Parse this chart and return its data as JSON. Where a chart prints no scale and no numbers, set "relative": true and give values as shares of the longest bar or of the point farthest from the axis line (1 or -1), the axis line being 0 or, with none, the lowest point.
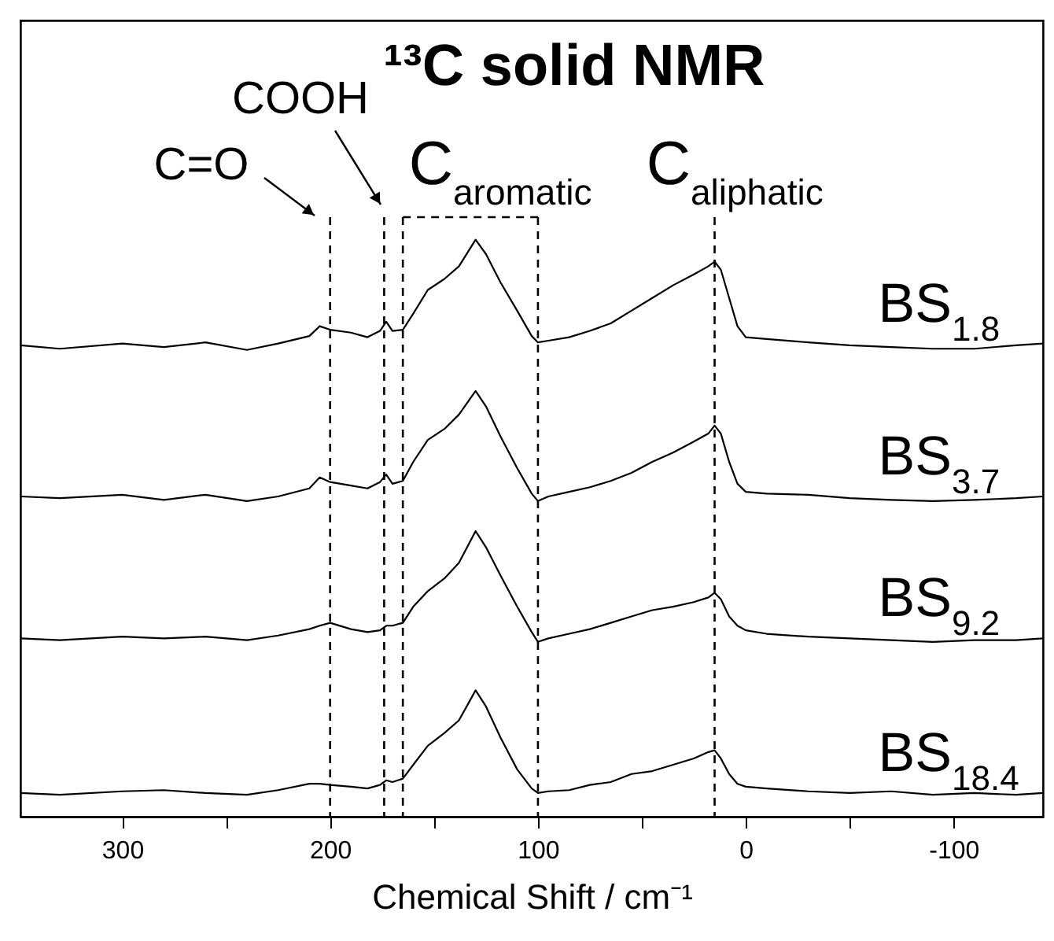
{
  "chart_data": {
    "type": "line",
    "title": "¹³C solid NMR",
    "xlabel": "Chemical Shift / cm⁻¹",
    "relative": true,
    "grid": false,
    "legend": false,
    "marker": "none",
    "line_style": "solid",
    "x": [
      349,
      330,
      300,
      280,
      260,
      240,
      225,
      210,
      205,
      200,
      190,
      182,
      176,
      173,
      170,
      165,
      160,
      153,
      145,
      138,
      130,
      125,
      118,
      110,
      103,
      100,
      95,
      85,
      75,
      65,
      55,
      45,
      35,
      25,
      18,
      15,
      12,
      8,
      4,
      0,
      -10,
      -30,
      -50,
      -70,
      -90,
      -110,
      -130,
      -143
    ],
    "xlim": [
      349,
      -143
    ],
    "xticks": [
      300,
      {
        "value": 250,
        "label": null
      },
      200,
      {
        "value": 150,
        "label": null
      },
      100,
      {
        "value": 50,
        "label": null
      },
      0,
      {
        "value": -50,
        "label": null
      },
      -100
    ],
    "series": [
      {
        "name": "BS$_{1.8}$",
        "color": "#000000",
        "values": [
          0.817,
          0.811,
          0.82,
          0.814,
          0.822,
          0.809,
          0.82,
          0.833,
          0.85,
          0.844,
          0.839,
          0.831,
          0.842,
          0.858,
          0.842,
          0.844,
          0.872,
          0.913,
          0.932,
          0.954,
          1.0,
          0.975,
          0.926,
          0.877,
          0.833,
          0.822,
          0.825,
          0.831,
          0.842,
          0.855,
          0.877,
          0.899,
          0.921,
          0.94,
          0.954,
          0.962,
          0.948,
          0.899,
          0.85,
          0.831,
          0.828,
          0.822,
          0.817,
          0.814,
          0.811,
          0.811,
          0.817,
          0.82
        ]
      },
      {
        "name": "BS$_{3.7}$",
        "color": "#000000",
        "values": [
          0.555,
          0.552,
          0.558,
          0.549,
          0.558,
          0.547,
          0.555,
          0.569,
          0.588,
          0.58,
          0.574,
          0.569,
          0.58,
          0.593,
          0.577,
          0.582,
          0.615,
          0.653,
          0.672,
          0.697,
          0.738,
          0.711,
          0.659,
          0.604,
          0.56,
          0.547,
          0.555,
          0.563,
          0.571,
          0.582,
          0.596,
          0.615,
          0.631,
          0.65,
          0.664,
          0.678,
          0.664,
          0.615,
          0.577,
          0.563,
          0.56,
          0.558,
          0.552,
          0.549,
          0.547,
          0.549,
          0.552,
          0.555
        ]
      },
      {
        "name": "BS$_{9.2}$",
        "color": "#000000",
        "values": [
          0.309,
          0.306,
          0.312,
          0.309,
          0.312,
          0.306,
          0.314,
          0.325,
          0.331,
          0.336,
          0.325,
          0.32,
          0.323,
          0.331,
          0.331,
          0.336,
          0.364,
          0.391,
          0.413,
          0.44,
          0.495,
          0.467,
          0.418,
          0.364,
          0.32,
          0.303,
          0.309,
          0.317,
          0.325,
          0.336,
          0.347,
          0.358,
          0.364,
          0.372,
          0.38,
          0.388,
          0.377,
          0.347,
          0.331,
          0.323,
          0.317,
          0.312,
          0.309,
          0.306,
          0.303,
          0.306,
          0.306,
          0.309
        ]
      },
      {
        "name": "BS$_{18.4}$",
        "color": "#000000",
        "values": [
          0.041,
          0.038,
          0.044,
          0.046,
          0.041,
          0.038,
          0.046,
          0.057,
          0.057,
          0.055,
          0.052,
          0.049,
          0.055,
          0.063,
          0.06,
          0.066,
          0.09,
          0.123,
          0.145,
          0.167,
          0.219,
          0.191,
          0.137,
          0.082,
          0.049,
          0.041,
          0.044,
          0.046,
          0.055,
          0.06,
          0.074,
          0.079,
          0.09,
          0.101,
          0.112,
          0.115,
          0.101,
          0.074,
          0.057,
          0.052,
          0.049,
          0.044,
          0.041,
          0.044,
          0.038,
          0.041,
          0.038,
          0.041
        ]
      }
    ],
    "annotations": [
      "C=O",
      "COOH",
      "C$_{aromatic}$",
      "C$_{aliphatic}$"
    ],
    "ref_lines": [
      {
        "axis": "x",
        "value": 200,
        "line_style": "dashed",
        "color": "#000000"
      },
      {
        "axis": "x",
        "value": 174,
        "line_style": "dashed",
        "color": "#000000"
      },
      {
        "axis": "x",
        "value": 165,
        "line_style": "dashed",
        "color": "#000000"
      },
      {
        "axis": "x",
        "value": 100,
        "line_style": "dashed",
        "color": "#000000"
      },
      {
        "axis": "x",
        "value": 15,
        "line_style": "dashed",
        "color": "#000000"
      }
    ]
  }
}
